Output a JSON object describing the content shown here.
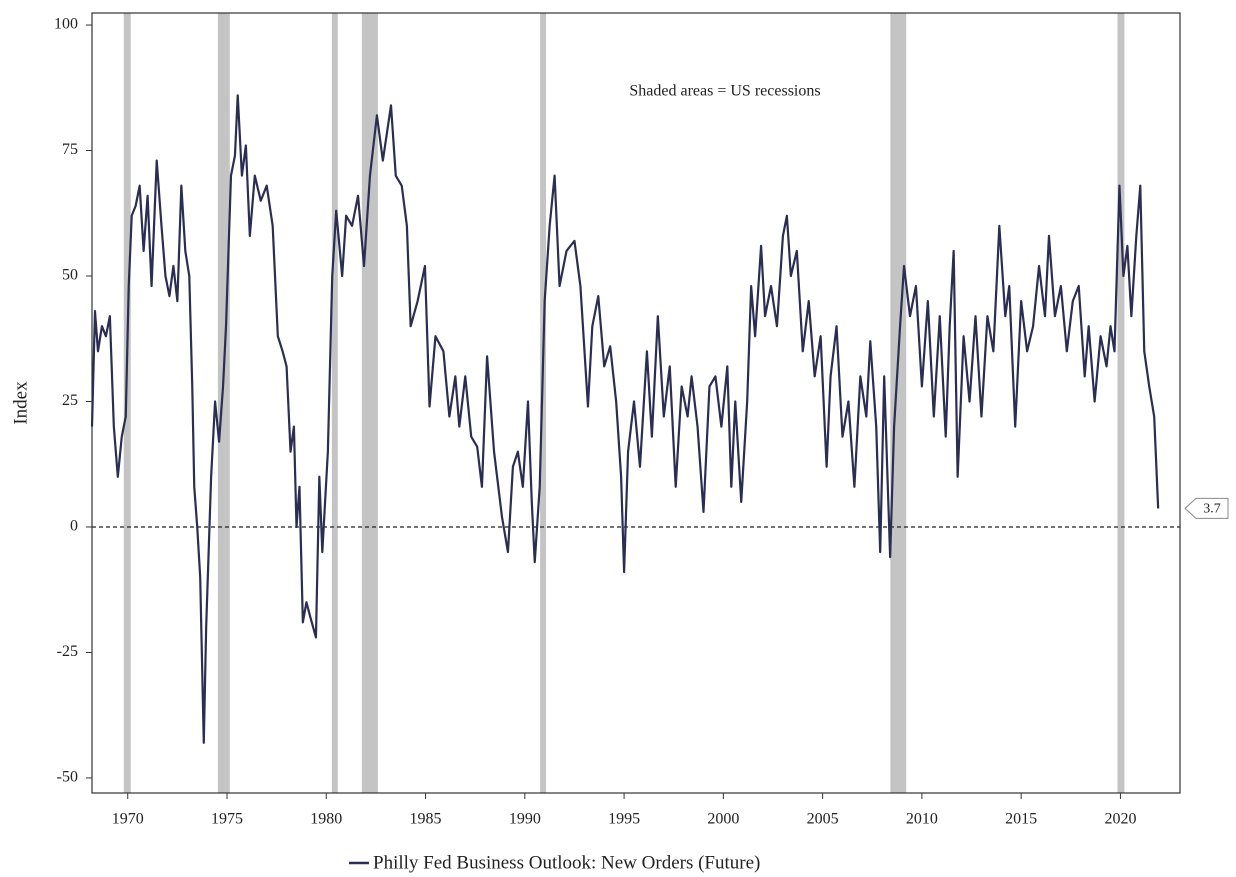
{
  "chart_data": {
    "type": "line",
    "ylabel": "Index",
    "annotation": "Shaded areas = US recessions",
    "xlim": [
      1968.2,
      2023.0
    ],
    "ylim": [
      -53,
      102.4
    ],
    "xticks": [
      1970,
      1975,
      1980,
      1985,
      1990,
      1995,
      2000,
      2005,
      2010,
      2015,
      2020
    ],
    "yticks": [
      -50,
      -25,
      0,
      25,
      50,
      75,
      100
    ],
    "grid": false,
    "reference_line": 0,
    "shaded_regions": [
      [
        1969.8,
        1970.15
      ],
      [
        1974.54,
        1975.14
      ],
      [
        1980.28,
        1980.58
      ],
      [
        1981.79,
        1982.6
      ],
      [
        1990.77,
        1991.07
      ],
      [
        2008.41,
        2009.21
      ],
      [
        2019.85,
        2020.2
      ]
    ],
    "shade_color": "#c4c4c4",
    "legend": "bottom",
    "x": [
      1968.2,
      1968.35,
      1968.5,
      1968.7,
      1968.9,
      1969.1,
      1969.3,
      1969.5,
      1969.7,
      1969.9,
      1970.05,
      1970.2,
      1970.4,
      1970.6,
      1970.8,
      1971.0,
      1971.2,
      1971.46,
      1971.7,
      1971.9,
      1972.1,
      1972.3,
      1972.5,
      1972.7,
      1972.9,
      1973.1,
      1973.25,
      1973.35,
      1973.5,
      1973.65,
      1973.83,
      1973.95,
      1974.2,
      1974.4,
      1974.6,
      1974.8,
      1974.95,
      1975.2,
      1975.4,
      1975.54,
      1975.75,
      1975.95,
      1976.15,
      1976.4,
      1976.7,
      1977.0,
      1977.3,
      1977.56,
      1977.8,
      1978.0,
      1978.2,
      1978.37,
      1978.5,
      1978.65,
      1978.82,
      1979.0,
      1979.2,
      1979.48,
      1979.65,
      1979.8,
      1980.08,
      1980.3,
      1980.5,
      1980.8,
      1981.0,
      1981.3,
      1981.6,
      1981.9,
      1982.2,
      1982.55,
      1982.85,
      1983.26,
      1983.5,
      1983.8,
      1984.06,
      1984.25,
      1984.6,
      1984.97,
      1985.2,
      1985.5,
      1985.9,
      1986.2,
      1986.5,
      1986.7,
      1987.0,
      1987.3,
      1987.6,
      1987.84,
      1988.1,
      1988.45,
      1988.85,
      1989.15,
      1989.4,
      1989.65,
      1989.9,
      1990.16,
      1990.35,
      1990.5,
      1990.75,
      1991.0,
      1991.25,
      1991.5,
      1991.75,
      1992.1,
      1992.5,
      1992.8,
      1993.18,
      1993.4,
      1993.7,
      1994.0,
      1994.3,
      1994.6,
      1994.85,
      1995.0,
      1995.2,
      1995.5,
      1995.8,
      1996.15,
      1996.4,
      1996.7,
      1997.0,
      1997.3,
      1997.6,
      1997.9,
      1998.2,
      1998.4,
      1998.7,
      1999.0,
      1999.3,
      1999.6,
      1999.9,
      2000.2,
      2000.4,
      2000.6,
      2000.9,
      2001.2,
      2001.4,
      2001.6,
      2001.9,
      2002.1,
      2002.4,
      2002.7,
      2003.0,
      2003.2,
      2003.4,
      2003.7,
      2004.0,
      2004.3,
      2004.6,
      2004.9,
      2005.2,
      2005.4,
      2005.7,
      2006.0,
      2006.3,
      2006.6,
      2006.9,
      2007.2,
      2007.4,
      2007.7,
      2007.9,
      2008.1,
      2008.4,
      2008.6,
      2008.9,
      2009.1,
      2009.4,
      2009.7,
      2010.0,
      2010.3,
      2010.6,
      2010.9,
      2011.2,
      2011.4,
      2011.6,
      2011.8,
      2012.1,
      2012.4,
      2012.7,
      2013.0,
      2013.3,
      2013.6,
      2013.9,
      2014.2,
      2014.4,
      2014.7,
      2015.0,
      2015.3,
      2015.6,
      2015.9,
      2016.2,
      2016.4,
      2016.7,
      2017.0,
      2017.3,
      2017.6,
      2017.9,
      2018.2,
      2018.4,
      2018.7,
      2019.0,
      2019.3,
      2019.5,
      2019.7,
      2019.95,
      2020.15,
      2020.35,
      2020.55,
      2020.8,
      2021.0,
      2021.2,
      2021.45,
      2021.7,
      2021.9
    ],
    "series": [
      {
        "name": "Philly Fed Business Outlook: New Orders (Future)",
        "color": "#2b2d52",
        "values": [
          20,
          43,
          35,
          40,
          38,
          42,
          20,
          10,
          18,
          22,
          48,
          62,
          64,
          68,
          55,
          66,
          48,
          73,
          60,
          50,
          46,
          52,
          45,
          68,
          55,
          50,
          28,
          8,
          0,
          -10,
          -43,
          -20,
          10,
          25,
          17,
          28,
          40,
          70,
          74,
          86,
          70,
          76,
          58,
          70,
          65,
          68,
          60,
          38,
          35,
          32,
          15,
          20,
          0,
          8,
          -19,
          -15,
          -18,
          -22,
          10,
          -5,
          15,
          50,
          63,
          50,
          62,
          60,
          66,
          52,
          70,
          82,
          73,
          84,
          70,
          68,
          60,
          40,
          45,
          52,
          24,
          38,
          35,
          22,
          30,
          20,
          30,
          18,
          16,
          8,
          34,
          15,
          2,
          -5,
          12,
          15,
          8,
          25,
          5,
          -7,
          8,
          45,
          60,
          70,
          48,
          55,
          57,
          48,
          24,
          40,
          46,
          32,
          36,
          25,
          10,
          -9,
          15,
          25,
          12,
          35,
          18,
          42,
          22,
          32,
          8,
          28,
          22,
          30,
          20,
          3,
          28,
          30,
          20,
          32,
          8,
          25,
          5,
          25,
          48,
          38,
          56,
          42,
          48,
          40,
          58,
          62,
          50,
          55,
          35,
          45,
          30,
          38,
          12,
          30,
          40,
          18,
          25,
          8,
          30,
          22,
          37,
          20,
          -5,
          30,
          -6,
          20,
          40,
          52,
          42,
          48,
          28,
          45,
          22,
          42,
          18,
          40,
          55,
          10,
          38,
          25,
          42,
          22,
          42,
          35,
          60,
          42,
          48,
          20,
          45,
          35,
          40,
          52,
          42,
          58,
          42,
          48,
          35,
          45,
          48,
          30,
          40,
          25,
          38,
          32,
          40,
          35,
          68,
          50,
          56,
          42,
          58,
          68,
          35,
          28,
          22,
          3.7
        ]
      }
    ]
  }
}
